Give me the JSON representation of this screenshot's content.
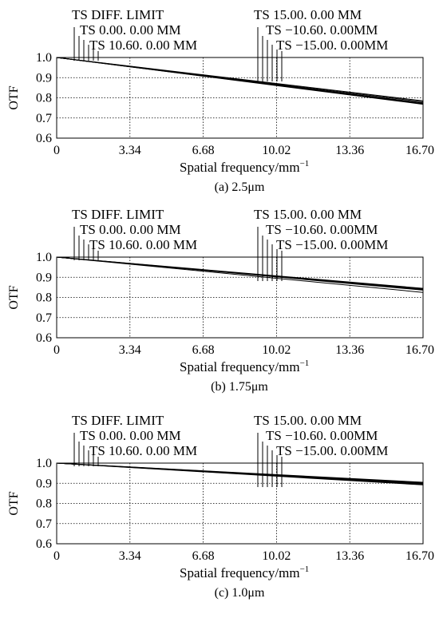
{
  "chart_data": [
    {
      "type": "line",
      "caption": "(a) 2.5μm",
      "xlabel": "Spatial frequency/mm",
      "xlabel_sup": "−1",
      "ylabel": "OTF",
      "xlim": [
        0,
        16.7
      ],
      "ylim": [
        0.6,
        1.0
      ],
      "x_ticks": [
        "0",
        "3.34",
        "6.68",
        "10.02",
        "13.36",
        "16.70"
      ],
      "y_ticks": [
        "0.6",
        "0.7",
        "0.8",
        "0.9",
        "1.0"
      ],
      "grid": true,
      "legend_left": [
        "TS DIFF. LIMIT",
        "TS 0.00.  0.00 MM",
        "TS 10.60.  0.00 MM"
      ],
      "legend_right": [
        "TS 15.00.  0.00 MM",
        "TS −10.60.  0.00MM",
        "TS −15.00.  0.00MM"
      ],
      "x": [
        0,
        16.7
      ],
      "series": [
        {
          "values": [
            1.0,
            0.785
          ]
        },
        {
          "values": [
            1.0,
            0.78
          ]
        },
        {
          "values": [
            1.0,
            0.775
          ]
        },
        {
          "values": [
            1.0,
            0.77
          ]
        },
        {
          "values": [
            1.0,
            0.772
          ]
        },
        {
          "values": [
            1.0,
            0.768
          ]
        }
      ]
    },
    {
      "type": "line",
      "caption": "(b) 1.75μm",
      "xlabel": "Spatial frequency/mm",
      "xlabel_sup": "−1",
      "ylabel": "OTF",
      "xlim": [
        0,
        16.7
      ],
      "ylim": [
        0.6,
        1.0
      ],
      "x_ticks": [
        "0",
        "3.34",
        "6.68",
        "10.02",
        "13.36",
        "16.70"
      ],
      "y_ticks": [
        "0.6",
        "0.7",
        "0.8",
        "0.9",
        "1.0"
      ],
      "grid": true,
      "legend_left": [
        "TS DIFF. LIMIT",
        "TS 0.00.  0.00 MM",
        "TS 10.60.  0.00 MM"
      ],
      "legend_right": [
        "TS 15.00.  0.00 MM",
        "TS −10.60.  0.00MM",
        "TS −15.00.  0.00MM"
      ],
      "x": [
        0,
        16.7
      ],
      "series": [
        {
          "values": [
            1.0,
            0.845
          ]
        },
        {
          "values": [
            1.0,
            0.842
          ]
        },
        {
          "values": [
            1.0,
            0.84
          ]
        },
        {
          "values": [
            1.0,
            0.838
          ]
        },
        {
          "values": [
            1.0,
            0.836
          ]
        },
        {
          "values": [
            1.0,
            0.825
          ]
        }
      ]
    },
    {
      "type": "line",
      "caption": "(c) 1.0μm",
      "xlabel": "Spatial frequency/mm",
      "xlabel_sup": "−1",
      "ylabel": "OTF",
      "xlim": [
        0,
        16.7
      ],
      "ylim": [
        0.6,
        1.0
      ],
      "x_ticks": [
        "0",
        "3.34",
        "6.68",
        "10.02",
        "13.36",
        "16.70"
      ],
      "y_ticks": [
        "0.6",
        "0.7",
        "0.8",
        "0.9",
        "1.0"
      ],
      "grid": true,
      "legend_left": [
        "TS DIFF. LIMIT",
        "TS 0.00.  0.00 MM",
        "TS 10.60.  0.00 MM"
      ],
      "legend_right": [
        "TS 15.00.  0.00 MM",
        "TS −10.60.  0.00MM",
        "TS −15.00.  0.00MM"
      ],
      "x": [
        0,
        16.7
      ],
      "series": [
        {
          "values": [
            1.0,
            0.905
          ]
        },
        {
          "values": [
            1.0,
            0.902
          ]
        },
        {
          "values": [
            1.0,
            0.9
          ]
        },
        {
          "values": [
            1.0,
            0.898
          ]
        },
        {
          "values": [
            1.0,
            0.895
          ]
        },
        {
          "values": [
            1.0,
            0.892
          ]
        }
      ]
    }
  ],
  "colors": {
    "line": "#000000",
    "grid": "#000000",
    "background": "#ffffff"
  }
}
